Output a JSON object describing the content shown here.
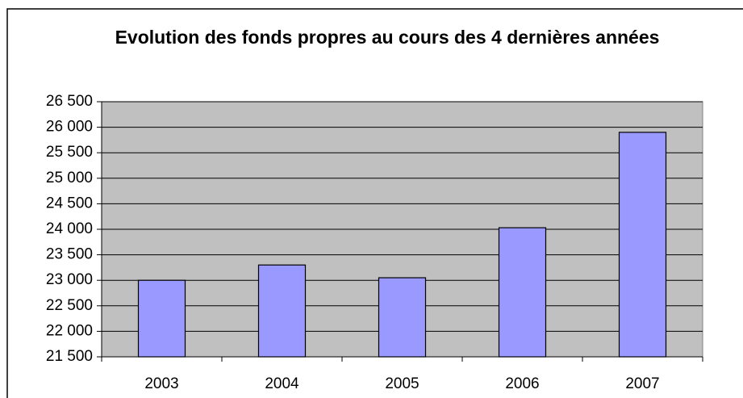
{
  "chart_data": {
    "type": "bar",
    "title": "Evolution des fonds propres au cours des 4 dernières années",
    "categories": [
      "2003",
      "2004",
      "2005",
      "2006",
      "2007"
    ],
    "values": [
      23000,
      23300,
      23050,
      24030,
      25900
    ],
    "color": "#9999ff",
    "ylim": [
      21500,
      26500
    ],
    "yticks": [
      {
        "value": 21500,
        "label": "21 500"
      },
      {
        "value": 22000,
        "label": "22 000"
      },
      {
        "value": 22500,
        "label": "22 500"
      },
      {
        "value": 23000,
        "label": "23 000"
      },
      {
        "value": 23500,
        "label": "23 500"
      },
      {
        "value": 24000,
        "label": "24 000"
      },
      {
        "value": 24500,
        "label": "24 500"
      },
      {
        "value": 25000,
        "label": "25 000"
      },
      {
        "value": 25500,
        "label": "25 500"
      },
      {
        "value": 26000,
        "label": "26 000"
      },
      {
        "value": 26500,
        "label": "26 500"
      }
    ],
    "grid": true
  }
}
